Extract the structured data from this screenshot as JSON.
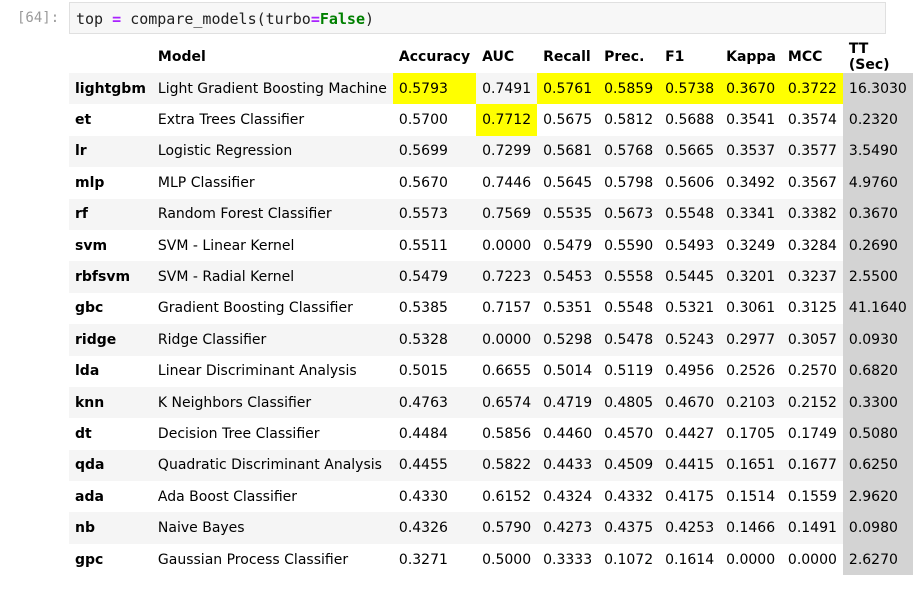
{
  "cell": {
    "prompt": "[64]:",
    "code": {
      "var": "top",
      "assign": "=",
      "func": "compare_models(turbo",
      "eq": "=",
      "arg": "False",
      "close": ")"
    }
  },
  "table": {
    "headers": [
      "",
      "Model",
      "Accuracy",
      "AUC",
      "Recall",
      "Prec.",
      "F1",
      "Kappa",
      "MCC",
      "TT (Sec)"
    ],
    "highlight_color": "#ffff00",
    "tt_column_color": "#d3d3d3",
    "rows": [
      {
        "idx": "lightgbm",
        "model": "Light Gradient Boosting Machine",
        "acc": "0.5793",
        "auc": "0.7491",
        "recall": "0.5761",
        "prec": "0.5859",
        "f1": "0.5738",
        "kappa": "0.3670",
        "mcc": "0.3722",
        "tt": "16.3030",
        "hl": [
          "acc",
          "recall",
          "prec",
          "f1",
          "kappa",
          "mcc"
        ]
      },
      {
        "idx": "et",
        "model": "Extra Trees Classifier",
        "acc": "0.5700",
        "auc": "0.7712",
        "recall": "0.5675",
        "prec": "0.5812",
        "f1": "0.5688",
        "kappa": "0.3541",
        "mcc": "0.3574",
        "tt": "0.2320",
        "hl": [
          "auc"
        ]
      },
      {
        "idx": "lr",
        "model": "Logistic Regression",
        "acc": "0.5699",
        "auc": "0.7299",
        "recall": "0.5681",
        "prec": "0.5768",
        "f1": "0.5665",
        "kappa": "0.3537",
        "mcc": "0.3577",
        "tt": "3.5490",
        "hl": []
      },
      {
        "idx": "mlp",
        "model": "MLP Classifier",
        "acc": "0.5670",
        "auc": "0.7446",
        "recall": "0.5645",
        "prec": "0.5798",
        "f1": "0.5606",
        "kappa": "0.3492",
        "mcc": "0.3567",
        "tt": "4.9760",
        "hl": []
      },
      {
        "idx": "rf",
        "model": "Random Forest Classifier",
        "acc": "0.5573",
        "auc": "0.7569",
        "recall": "0.5535",
        "prec": "0.5673",
        "f1": "0.5548",
        "kappa": "0.3341",
        "mcc": "0.3382",
        "tt": "0.3670",
        "hl": []
      },
      {
        "idx": "svm",
        "model": "SVM - Linear Kernel",
        "acc": "0.5511",
        "auc": "0.0000",
        "recall": "0.5479",
        "prec": "0.5590",
        "f1": "0.5493",
        "kappa": "0.3249",
        "mcc": "0.3284",
        "tt": "0.2690",
        "hl": []
      },
      {
        "idx": "rbfsvm",
        "model": "SVM - Radial Kernel",
        "acc": "0.5479",
        "auc": "0.7223",
        "recall": "0.5453",
        "prec": "0.5558",
        "f1": "0.5445",
        "kappa": "0.3201",
        "mcc": "0.3237",
        "tt": "2.5500",
        "hl": []
      },
      {
        "idx": "gbc",
        "model": "Gradient Boosting Classifier",
        "acc": "0.5385",
        "auc": "0.7157",
        "recall": "0.5351",
        "prec": "0.5548",
        "f1": "0.5321",
        "kappa": "0.3061",
        "mcc": "0.3125",
        "tt": "41.1640",
        "hl": []
      },
      {
        "idx": "ridge",
        "model": "Ridge Classifier",
        "acc": "0.5328",
        "auc": "0.0000",
        "recall": "0.5298",
        "prec": "0.5478",
        "f1": "0.5243",
        "kappa": "0.2977",
        "mcc": "0.3057",
        "tt": "0.0930",
        "hl": []
      },
      {
        "idx": "lda",
        "model": "Linear Discriminant Analysis",
        "acc": "0.5015",
        "auc": "0.6655",
        "recall": "0.5014",
        "prec": "0.5119",
        "f1": "0.4956",
        "kappa": "0.2526",
        "mcc": "0.2570",
        "tt": "0.6820",
        "hl": []
      },
      {
        "idx": "knn",
        "model": "K Neighbors Classifier",
        "acc": "0.4763",
        "auc": "0.6574",
        "recall": "0.4719",
        "prec": "0.4805",
        "f1": "0.4670",
        "kappa": "0.2103",
        "mcc": "0.2152",
        "tt": "0.3300",
        "hl": []
      },
      {
        "idx": "dt",
        "model": "Decision Tree Classifier",
        "acc": "0.4484",
        "auc": "0.5856",
        "recall": "0.4460",
        "prec": "0.4570",
        "f1": "0.4427",
        "kappa": "0.1705",
        "mcc": "0.1749",
        "tt": "0.5080",
        "hl": []
      },
      {
        "idx": "qda",
        "model": "Quadratic Discriminant Analysis",
        "acc": "0.4455",
        "auc": "0.5822",
        "recall": "0.4433",
        "prec": "0.4509",
        "f1": "0.4415",
        "kappa": "0.1651",
        "mcc": "0.1677",
        "tt": "0.6250",
        "hl": []
      },
      {
        "idx": "ada",
        "model": "Ada Boost Classifier",
        "acc": "0.4330",
        "auc": "0.6152",
        "recall": "0.4324",
        "prec": "0.4332",
        "f1": "0.4175",
        "kappa": "0.1514",
        "mcc": "0.1559",
        "tt": "2.9620",
        "hl": []
      },
      {
        "idx": "nb",
        "model": "Naive Bayes",
        "acc": "0.4326",
        "auc": "0.5790",
        "recall": "0.4273",
        "prec": "0.4375",
        "f1": "0.4253",
        "kappa": "0.1466",
        "mcc": "0.1491",
        "tt": "0.0980",
        "hl": []
      },
      {
        "idx": "gpc",
        "model": "Gaussian Process Classifier",
        "acc": "0.3271",
        "auc": "0.5000",
        "recall": "0.3333",
        "prec": "0.1072",
        "f1": "0.1614",
        "kappa": "0.0000",
        "mcc": "0.0000",
        "tt": "2.6270",
        "hl": []
      }
    ]
  }
}
